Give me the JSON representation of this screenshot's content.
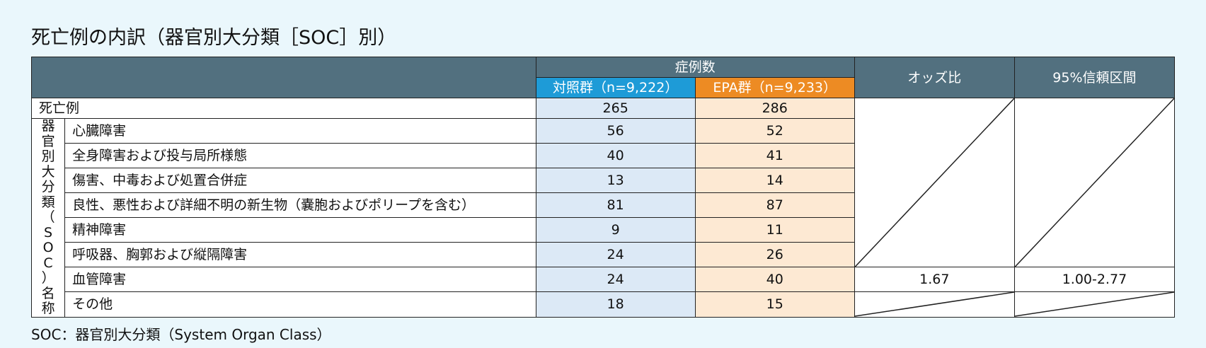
{
  "title": "死亡例の内訳（器官別大分類［SOC］別）",
  "header": {
    "case_count": "症例数",
    "control": "対照群（n=9,222）",
    "epa": "EPA群（n=9,233）",
    "odds_ratio": "オッズ比",
    "ci": "95%信頼区間"
  },
  "total_row": {
    "label": "死亡例",
    "control": "265",
    "epa": "286"
  },
  "group_label_chars": [
    "器",
    "官",
    "別",
    "大",
    "分",
    "類",
    "（",
    "S",
    "O",
    "C",
    "）",
    "名",
    "称"
  ],
  "rows": [
    {
      "label": "心臓障害",
      "control": "56",
      "epa": "52"
    },
    {
      "label": "全身障害および投与局所様態",
      "control": "40",
      "epa": "41"
    },
    {
      "label": "傷害、中毒および処置合併症",
      "control": "13",
      "epa": "14"
    },
    {
      "label": "良性、悪性および詳細不明の新生物（嚢胞およびポリープを含む）",
      "control": "81",
      "epa": "87"
    },
    {
      "label": "精神障害",
      "control": "9",
      "epa": "11"
    },
    {
      "label": "呼吸器、胸郭および縦隔障害",
      "control": "24",
      "epa": "26"
    },
    {
      "label": "血管障害",
      "control": "24",
      "epa": "40",
      "odds_ratio": "1.67",
      "ci": "1.00-2.77"
    },
    {
      "label": "その他",
      "control": "18",
      "epa": "15"
    }
  ],
  "footnote": "SOC：器官別大分類（System Organ Class）",
  "colors": {
    "header_bg": "#52707f",
    "control_header": "#1e9bd7",
    "epa_header": "#ed8b23",
    "control_cell": "#dce9f6",
    "epa_cell": "#fde9d3",
    "page_bg": "#eaf7fc"
  }
}
